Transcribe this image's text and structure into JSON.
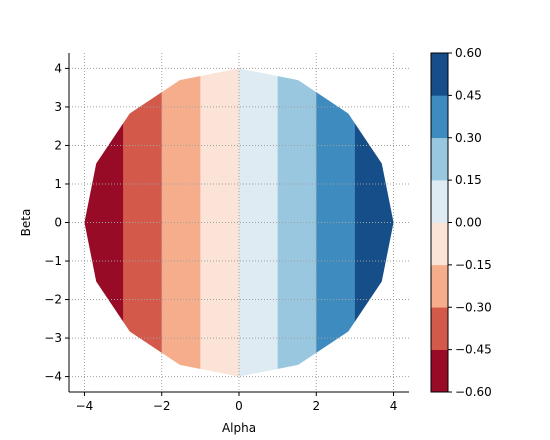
{
  "chart_data": {
    "type": "contourf",
    "xlabel": "Alpha",
    "ylabel": "Beta",
    "xlim": [
      -4.4,
      4.4
    ],
    "ylim": [
      -4.4,
      4.4
    ],
    "x_ticks": [
      -4,
      -2,
      0,
      2,
      4
    ],
    "y_ticks": [
      -4,
      -3,
      -2,
      -1,
      0,
      1,
      2,
      3,
      4
    ],
    "x_tick_labels": [
      "−4",
      "−2",
      "0",
      "2",
      "4"
    ],
    "y_tick_labels": [
      "−4",
      "−3",
      "−2",
      "−1",
      "0",
      "1",
      "2",
      "3",
      "4"
    ],
    "grid": true,
    "region": {
      "shape": "circle",
      "radius": 4,
      "polygon_sides": 16
    },
    "field": "value = 0.15 * Alpha",
    "levels": [
      -0.6,
      -0.45,
      -0.3,
      -0.15,
      0.0,
      0.15,
      0.3,
      0.45,
      0.6
    ],
    "level_colors": [
      "#980b27",
      "#d35a4a",
      "#f5ad8c",
      "#fbe4d7",
      "#deebf2",
      "#98c7df",
      "#3e8bc0",
      "#164e8a"
    ],
    "colorbar": {
      "ticks": [
        0.6,
        0.45,
        0.3,
        0.15,
        0.0,
        -0.15,
        -0.3,
        -0.45,
        -0.6
      ],
      "tick_labels": [
        "0.60",
        "0.45",
        "0.30",
        "0.15",
        "0.00",
        "−0.15",
        "−0.30",
        "−0.45",
        "−0.60"
      ]
    }
  }
}
